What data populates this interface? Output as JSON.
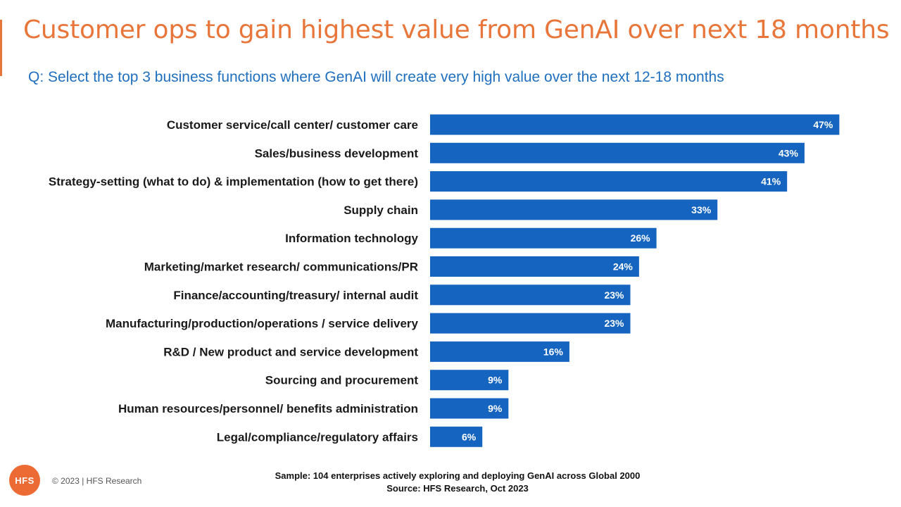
{
  "slide": {
    "title": "Customer ops to gain highest value from GenAI over next 18 months",
    "subtitle": "Q: Select the top 3 business functions where GenAI will create very high value over the next 12-18 months",
    "sample_note": "Sample: 104 enterprises actively exploring and deploying GenAI across Global 2000",
    "source_note": "Source: HFS Research, Oct 2023",
    "copyright": "© 2023 | HFS Research",
    "logo_text": "HFS"
  },
  "colors": {
    "title": "#e8763a",
    "subtitle": "#1f6fbf",
    "bar": "#1565c0",
    "bar_label": "#ffffff",
    "category_label": "#1a1a1a",
    "logo": "#ec6b35"
  },
  "chart_data": {
    "type": "bar",
    "orientation": "horizontal",
    "categories": [
      "Customer service/call center/ customer care",
      "Sales/business development",
      "Strategy-setting (what to do) & implementation (how to get there)",
      "Supply chain",
      "Information technology",
      "Marketing/market research/ communications/PR",
      "Finance/accounting/treasury/ internal audit",
      "Manufacturing/production/operations / service delivery",
      "R&D / New product and service development",
      "Sourcing and procurement",
      "Human resources/personnel/ benefits administration",
      "Legal/compliance/regulatory affairs"
    ],
    "values": [
      47,
      43,
      41,
      33,
      26,
      24,
      23,
      23,
      16,
      9,
      9,
      6
    ],
    "value_labels": [
      "47%",
      "43%",
      "41%",
      "33%",
      "26%",
      "24%",
      "23%",
      "23%",
      "16%",
      "9%",
      "9%",
      "6%"
    ],
    "unit": "%",
    "xlim": [
      0,
      50
    ],
    "grid": false,
    "legend": false
  }
}
